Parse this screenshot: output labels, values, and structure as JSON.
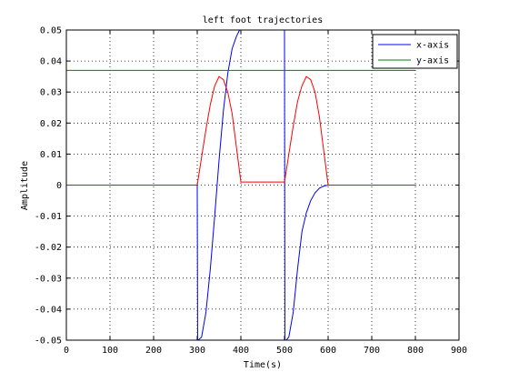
{
  "chart_data": {
    "type": "line",
    "title": "left foot trajectories",
    "xlabel": "Time(s)",
    "ylabel": "Amplitude",
    "xlim": [
      0,
      900
    ],
    "ylim": [
      -0.05,
      0.05
    ],
    "xticks": [
      0,
      100,
      200,
      300,
      400,
      500,
      600,
      700,
      800,
      900
    ],
    "yticks": [
      -0.05,
      -0.04,
      -0.03,
      -0.02,
      -0.01,
      0,
      0.01,
      0.02,
      0.03,
      0.04,
      0.05
    ],
    "xtick_labels": [
      "0",
      "100",
      "200",
      "300",
      "400",
      "500",
      "600",
      "700",
      "800",
      "900"
    ],
    "ytick_labels": [
      "-0.05",
      "-0.04",
      "-0.03",
      "-0.02",
      "-0.01",
      "0",
      "0.01",
      "0.02",
      "0.03",
      "0.04",
      "0.05"
    ],
    "grid": true,
    "legend_position": "top-right",
    "series": [
      {
        "name": "x-axis",
        "color": "#0000ff",
        "x": [
          300,
          301,
          302,
          310,
          320,
          330,
          340,
          350,
          360,
          370,
          380,
          390,
          397,
          400,
          500,
          501,
          502,
          503,
          504,
          510,
          520,
          530,
          540,
          550,
          560,
          570,
          580,
          590,
          600
        ],
        "y": [
          0,
          -0.05,
          -0.05,
          -0.049,
          -0.041,
          -0.027,
          -0.01,
          0.008,
          0.024,
          0.036,
          0.044,
          0.048,
          0.05,
          0.05,
          0.05,
          -0.05,
          -0.05,
          -0.05,
          -0.05,
          -0.049,
          -0.041,
          -0.027,
          -0.015,
          -0.009,
          -0.005,
          -0.0025,
          -0.001,
          -0.0003,
          0
        ]
      },
      {
        "name": "y-axis",
        "color": "#008000",
        "x": [
          0,
          800
        ],
        "y": [
          0.037,
          0.037
        ]
      },
      {
        "name": "",
        "color": "#ff0000",
        "x": [
          0,
          300,
          310,
          320,
          330,
          340,
          350,
          360,
          370,
          380,
          390,
          400,
          500,
          510,
          520,
          530,
          540,
          550,
          560,
          570,
          580,
          590,
          600,
          800
        ],
        "y": [
          0,
          0,
          0.009,
          0.018,
          0.026,
          0.032,
          0.035,
          0.034,
          0.03,
          0.023,
          0.012,
          0.001,
          0.001,
          0.01,
          0.019,
          0.027,
          0.032,
          0.035,
          0.034,
          0.03,
          0.022,
          0.011,
          0,
          0
        ]
      }
    ]
  }
}
